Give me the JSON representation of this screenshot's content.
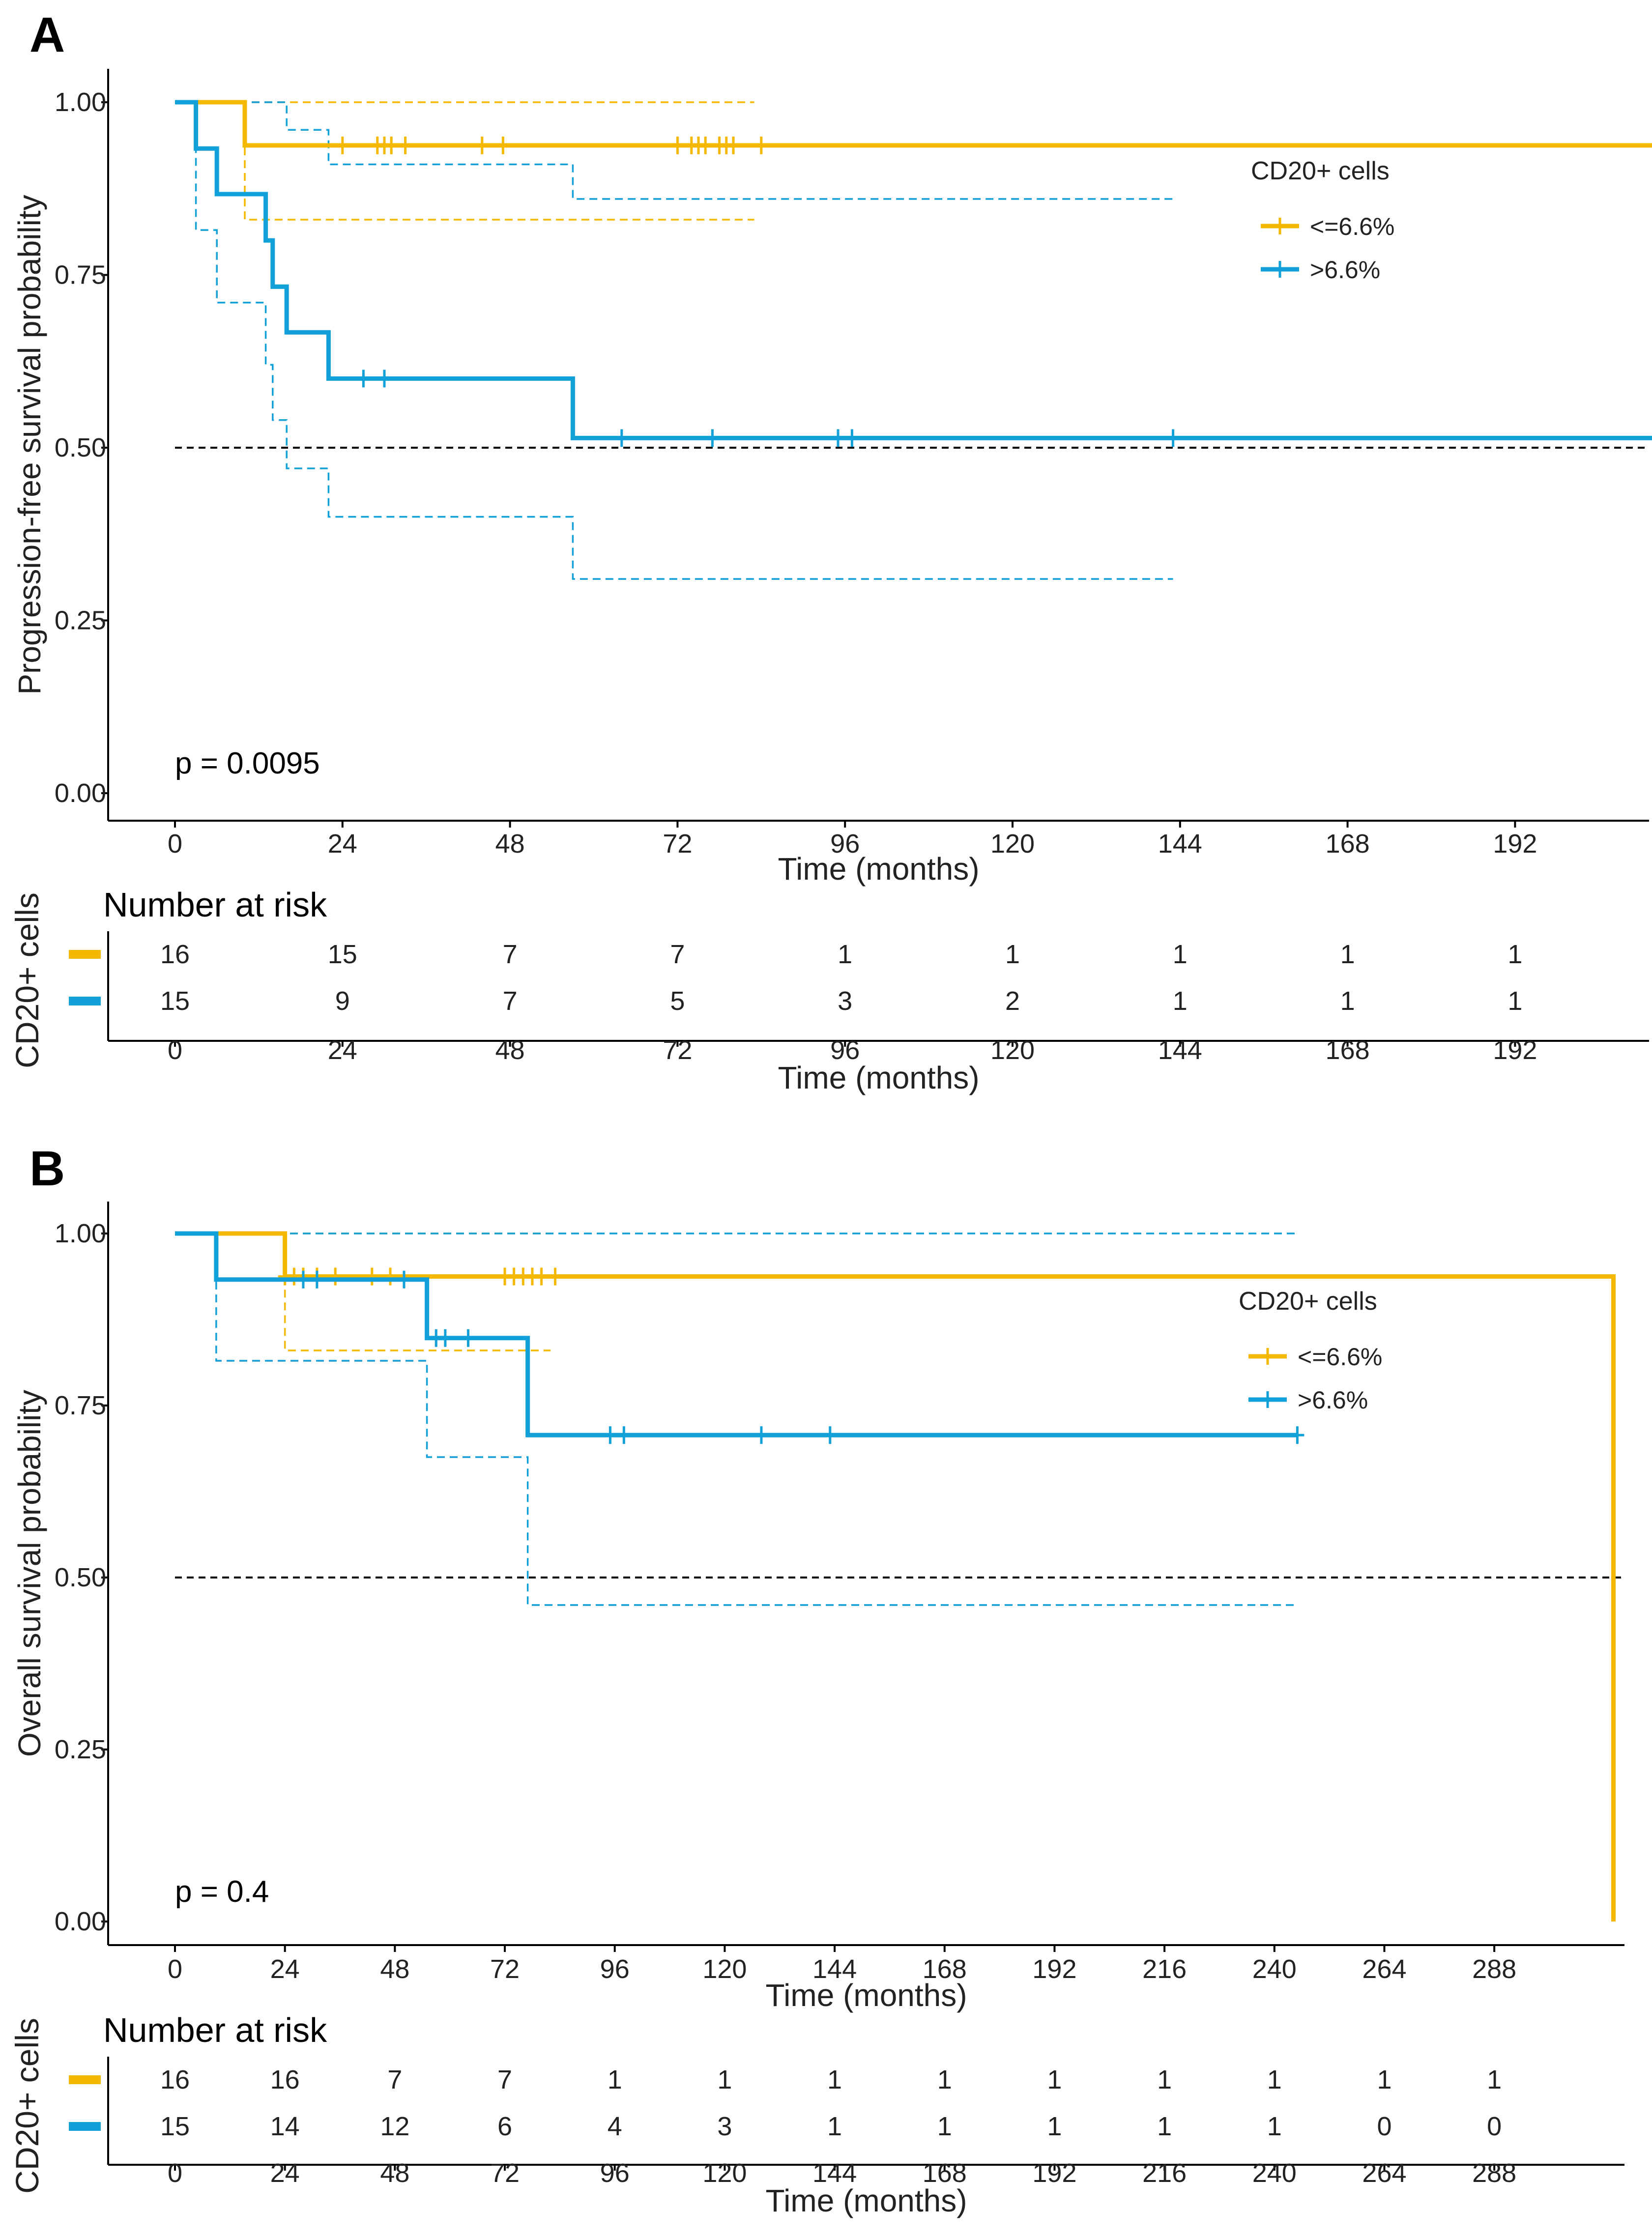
{
  "colors": {
    "low": "#F5B800",
    "high": "#11A0D7",
    "median": "#000000",
    "axis": "#000000"
  },
  "chart_data": [
    {
      "type": "line",
      "panel_label": "A",
      "title": "",
      "ylabel": "Progression-free survival probability",
      "xlabel": "Time (months)",
      "xlim": [
        0,
        220
      ],
      "ylim": [
        0,
        1
      ],
      "x_ticks": [
        0,
        24,
        48,
        72,
        96,
        120,
        144,
        168,
        192
      ],
      "y_ticks": [
        "0.00",
        "0.25",
        "0.50",
        "0.75",
        "1.00"
      ],
      "median_line": 0.5,
      "p_value": "p = 0.0095",
      "legend": {
        "title": "CD20+ cells",
        "position": "top-right"
      },
      "series": [
        {
          "name": "<=6.6%",
          "color_key": "low",
          "end": 220,
          "steps": [
            [
              0,
              1.0
            ],
            [
              10,
              0.9375
            ]
          ],
          "ci_upper": {
            "end": 83,
            "steps": [
              [
                0,
                1.0
              ]
            ]
          },
          "ci_lower": {
            "end": 83,
            "steps": [
              [
                0,
                1.0
              ],
              [
                10,
                0.83
              ]
            ]
          },
          "censors": [
            [
              24,
              0.9375
            ],
            [
              29,
              0.9375
            ],
            [
              30,
              0.9375
            ],
            [
              31,
              0.9375
            ],
            [
              33,
              0.9375
            ],
            [
              44,
              0.9375
            ],
            [
              47,
              0.9375
            ],
            [
              72,
              0.9375
            ],
            [
              74,
              0.9375
            ],
            [
              75,
              0.9375
            ],
            [
              76,
              0.9375
            ],
            [
              78,
              0.9375
            ],
            [
              79,
              0.9375
            ],
            [
              80,
              0.9375
            ],
            [
              84,
              0.9375
            ]
          ]
        },
        {
          "name": ">6.6%",
          "color_key": "high",
          "end": 220,
          "steps": [
            [
              0,
              1.0
            ],
            [
              3,
              0.933
            ],
            [
              6,
              0.867
            ],
            [
              13,
              0.8
            ],
            [
              14,
              0.733
            ],
            [
              16,
              0.667
            ],
            [
              22,
              0.6
            ],
            [
              57,
              0.514
            ]
          ],
          "ci_upper": {
            "end": 143,
            "steps": [
              [
                0,
                1.0
              ],
              [
                10,
                1.0
              ],
              [
                16,
                0.96
              ],
              [
                22,
                0.91
              ],
              [
                57,
                0.86
              ]
            ]
          },
          "ci_lower": {
            "end": 143,
            "steps": [
              [
                0,
                1.0
              ],
              [
                3,
                0.815
              ],
              [
                6,
                0.71
              ],
              [
                13,
                0.62
              ],
              [
                14,
                0.54
              ],
              [
                16,
                0.47
              ],
              [
                22,
                0.4
              ],
              [
                57,
                0.31
              ]
            ]
          },
          "censors": [
            [
              27,
              0.6
            ],
            [
              30,
              0.6
            ],
            [
              64,
              0.514
            ],
            [
              77,
              0.514
            ],
            [
              95,
              0.514
            ],
            [
              97,
              0.514
            ],
            [
              143,
              0.514
            ]
          ]
        }
      ],
      "risk_table": {
        "title": "Number at risk",
        "ylabel": "CD20+ cells",
        "xlabel": "Time (months)",
        "times": [
          0,
          24,
          48,
          72,
          96,
          120,
          144,
          168,
          192
        ],
        "rows": [
          {
            "color_key": "low",
            "values": [
              "16",
              "15",
              "7",
              "7",
              "1",
              "1",
              "1",
              "1",
              "1"
            ]
          },
          {
            "color_key": "high",
            "values": [
              "15",
              "9",
              "7",
              "5",
              "3",
              "2",
              "1",
              "1",
              "1"
            ]
          }
        ]
      }
    },
    {
      "type": "line",
      "panel_label": "B",
      "title": "",
      "ylabel": "Overall survival probability",
      "xlabel": "Time (months)",
      "xlim": [
        0,
        330
      ],
      "ylim": [
        0,
        1
      ],
      "x_ticks": [
        0,
        24,
        48,
        72,
        96,
        120,
        144,
        168,
        192,
        216,
        240,
        264,
        288
      ],
      "y_ticks": [
        "0.00",
        "0.25",
        "0.50",
        "0.75",
        "1.00"
      ],
      "median_line": 0.5,
      "p_value": "p = 0.4",
      "legend": {
        "title": "CD20+ cells",
        "position": "top-right"
      },
      "series": [
        {
          "name": "<=6.6%",
          "color_key": "low",
          "end": 314,
          "steps": [
            [
              0,
              1.0
            ],
            [
              24,
              0.9375
            ],
            [
              314,
              0.0
            ]
          ],
          "ci_upper": {
            "end": 82,
            "steps": [
              [
                0,
                1.0
              ]
            ]
          },
          "ci_lower": {
            "end": 82,
            "steps": [
              [
                0,
                1.0
              ],
              [
                24,
                0.83
              ]
            ]
          },
          "censors": [
            [
              24,
              0.9375
            ],
            [
              26,
              0.9375
            ],
            [
              28,
              0.9375
            ],
            [
              31,
              0.9375
            ],
            [
              35,
              0.9375
            ],
            [
              43,
              0.9375
            ],
            [
              47,
              0.9375
            ],
            [
              72,
              0.9375
            ],
            [
              74,
              0.9375
            ],
            [
              76,
              0.9375
            ],
            [
              78,
              0.9375
            ],
            [
              80,
              0.9375
            ],
            [
              83,
              0.9375
            ]
          ]
        },
        {
          "name": ">6.6%",
          "color_key": "high",
          "end": 245,
          "steps": [
            [
              0,
              1.0
            ],
            [
              9,
              0.933
            ],
            [
              55,
              0.848
            ],
            [
              77,
              0.707
            ]
          ],
          "ci_upper": {
            "end": 245,
            "steps": [
              [
                0,
                1.0
              ]
            ]
          },
          "ci_lower": {
            "end": 245,
            "steps": [
              [
                0,
                1.0
              ],
              [
                9,
                0.815
              ],
              [
                55,
                0.675
              ],
              [
                77,
                0.46
              ]
            ]
          },
          "censors": [
            [
              28,
              0.933
            ],
            [
              31,
              0.933
            ],
            [
              50,
              0.933
            ],
            [
              57,
              0.848
            ],
            [
              59,
              0.848
            ],
            [
              64,
              0.848
            ],
            [
              95,
              0.707
            ],
            [
              98,
              0.707
            ],
            [
              128,
              0.707
            ],
            [
              143,
              0.707
            ],
            [
              245,
              0.707
            ]
          ]
        }
      ],
      "risk_table": {
        "title": "Number at risk",
        "ylabel": "CD20+ cells",
        "xlabel": "Time (months)",
        "times": [
          0,
          24,
          48,
          72,
          96,
          120,
          144,
          168,
          192,
          216,
          240,
          264,
          288
        ],
        "rows": [
          {
            "color_key": "low",
            "values": [
              "16",
              "16",
              "7",
              "7",
              "1",
              "1",
              "1",
              "1",
              "1",
              "1",
              "1",
              "1",
              "1"
            ]
          },
          {
            "color_key": "high",
            "values": [
              "15",
              "14",
              "12",
              "6",
              "4",
              "3",
              "1",
              "1",
              "1",
              "1",
              "1",
              "0",
              "0"
            ]
          }
        ]
      }
    }
  ]
}
